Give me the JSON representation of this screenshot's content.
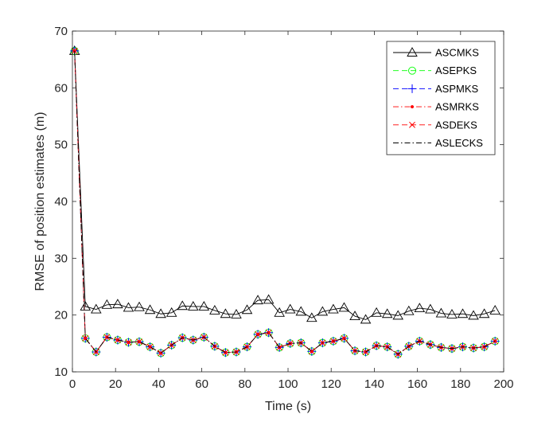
{
  "chart_data": {
    "type": "line",
    "title": "",
    "xlabel": "Time (s)",
    "ylabel": "RMSE of position estimates (m)",
    "xlim": [
      0,
      200
    ],
    "ylim": [
      10,
      70
    ],
    "xticks": [
      0,
      20,
      40,
      60,
      80,
      100,
      120,
      140,
      160,
      180,
      200
    ],
    "yticks": [
      10,
      20,
      30,
      40,
      50,
      60,
      70
    ],
    "grid": false,
    "legend_position": "top-right",
    "x": [
      1,
      6,
      11,
      16,
      21,
      26,
      31,
      36,
      41,
      46,
      51,
      56,
      61,
      66,
      71,
      76,
      81,
      86,
      91,
      96,
      101,
      106,
      111,
      116,
      121,
      126,
      131,
      136,
      141,
      146,
      151,
      156,
      161,
      166,
      171,
      176,
      181,
      186,
      191,
      196
    ],
    "series": [
      {
        "name": "ASCMKS",
        "color": "#000000",
        "line": "solid",
        "marker": "triangle",
        "values": [
          66.5,
          21.5,
          21.0,
          21.8,
          21.9,
          21.3,
          21.4,
          20.9,
          20.2,
          20.4,
          21.6,
          21.5,
          21.5,
          20.8,
          20.2,
          20.1,
          20.9,
          22.6,
          22.7,
          20.4,
          21.0,
          20.6,
          19.5,
          20.6,
          21.0,
          21.3,
          19.8,
          19.2,
          20.4,
          20.2,
          19.9,
          20.7,
          21.2,
          21.0,
          20.3,
          20.1,
          20.2,
          19.9,
          20.2,
          20.8
        ]
      },
      {
        "name": "ASEPKS",
        "color": "#00ff00",
        "line": "dashed",
        "marker": "circle",
        "values": [
          66.5,
          15.9,
          13.5,
          16.1,
          15.6,
          15.2,
          15.3,
          14.4,
          13.3,
          14.7,
          16.0,
          15.6,
          16.1,
          14.5,
          13.4,
          13.5,
          14.4,
          16.6,
          16.9,
          14.3,
          15.0,
          15.1,
          13.6,
          15.1,
          15.4,
          15.9,
          13.7,
          13.5,
          14.6,
          14.4,
          13.1,
          14.5,
          15.4,
          14.8,
          14.3,
          14.1,
          14.4,
          14.2,
          14.4,
          15.4
        ]
      },
      {
        "name": "ASPMKS",
        "color": "#0000ff",
        "line": "dashed",
        "marker": "plus",
        "values": [
          66.5,
          15.9,
          13.5,
          16.1,
          15.6,
          15.2,
          15.3,
          14.4,
          13.3,
          14.7,
          16.0,
          15.6,
          16.1,
          14.5,
          13.4,
          13.5,
          14.4,
          16.6,
          16.9,
          14.3,
          15.0,
          15.1,
          13.6,
          15.1,
          15.4,
          15.9,
          13.7,
          13.5,
          14.6,
          14.4,
          13.1,
          14.5,
          15.4,
          14.8,
          14.3,
          14.1,
          14.4,
          14.2,
          14.4,
          15.4
        ]
      },
      {
        "name": "ASMRKS",
        "color": "#ff0000",
        "line": "dashdot",
        "marker": "dot",
        "values": [
          66.5,
          15.9,
          13.5,
          16.1,
          15.6,
          15.2,
          15.3,
          14.4,
          13.3,
          14.7,
          16.0,
          15.6,
          16.1,
          14.5,
          13.4,
          13.5,
          14.4,
          16.6,
          16.9,
          14.3,
          15.0,
          15.1,
          13.6,
          15.1,
          15.4,
          15.9,
          13.7,
          13.5,
          14.6,
          14.4,
          13.1,
          14.5,
          15.4,
          14.8,
          14.3,
          14.1,
          14.4,
          14.2,
          14.4,
          15.4
        ]
      },
      {
        "name": "ASDEKS",
        "color": "#ff0000",
        "line": "dashed",
        "marker": "x",
        "values": [
          66.5,
          15.9,
          13.5,
          16.1,
          15.6,
          15.2,
          15.3,
          14.4,
          13.3,
          14.7,
          16.0,
          15.6,
          16.1,
          14.5,
          13.4,
          13.5,
          14.4,
          16.6,
          16.9,
          14.3,
          15.0,
          15.1,
          13.6,
          15.1,
          15.4,
          15.9,
          13.7,
          13.5,
          14.6,
          14.4,
          13.1,
          14.5,
          15.4,
          14.8,
          14.3,
          14.1,
          14.4,
          14.2,
          14.4,
          15.4
        ]
      },
      {
        "name": "ASLECKS",
        "color": "#000000",
        "line": "dashdot",
        "marker": "none",
        "values": [
          66.5,
          15.9,
          13.5,
          16.1,
          15.6,
          15.2,
          15.3,
          14.4,
          13.3,
          14.7,
          16.0,
          15.6,
          16.1,
          14.5,
          13.4,
          13.5,
          14.4,
          16.6,
          16.9,
          14.3,
          15.0,
          15.1,
          13.6,
          15.1,
          15.4,
          15.9,
          13.7,
          13.5,
          14.6,
          14.4,
          13.1,
          14.5,
          15.4,
          14.8,
          14.3,
          14.1,
          14.4,
          14.2,
          14.4,
          15.4
        ]
      }
    ]
  }
}
